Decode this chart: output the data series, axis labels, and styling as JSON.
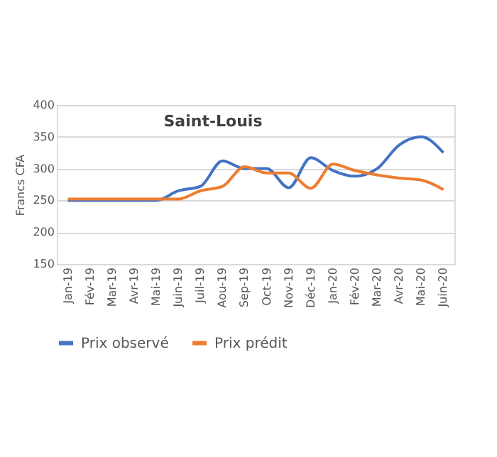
{
  "chart_data": {
    "type": "line",
    "title": "Saint-Louis",
    "ylabel": "Francs CFA",
    "categories": [
      "Jan-19",
      "Fév-19",
      "Mar-19",
      "Avr-19",
      "Mai-19",
      "Juin-19",
      "Juil-19",
      "Aou-19",
      "Sep-19",
      "Oct-19",
      "Nov-19",
      "Déc-19",
      "Jan-20",
      "Fév-20",
      "Mar-20",
      "Avr-20",
      "Mai-20",
      "Juin-20"
    ],
    "series": [
      {
        "name": "Prix observé",
        "color": "#4472c4",
        "values": [
          250,
          250,
          250,
          250,
          250,
          265,
          272,
          312,
          300,
          300,
          270,
          317,
          297,
          288,
          300,
          337,
          350,
          325
        ]
      },
      {
        "name": "Prix prédit",
        "color": "#ed7d31",
        "values": [
          252,
          252,
          252,
          252,
          252,
          252,
          265,
          272,
          303,
          293,
          293,
          269,
          307,
          297,
          290,
          285,
          282,
          267
        ]
      }
    ],
    "ylim": [
      150,
      400
    ],
    "yticks": [
      150,
      200,
      250,
      300,
      350,
      400
    ],
    "grid": "y",
    "legend": "bottom",
    "marker": "none",
    "line_style": "solid"
  }
}
